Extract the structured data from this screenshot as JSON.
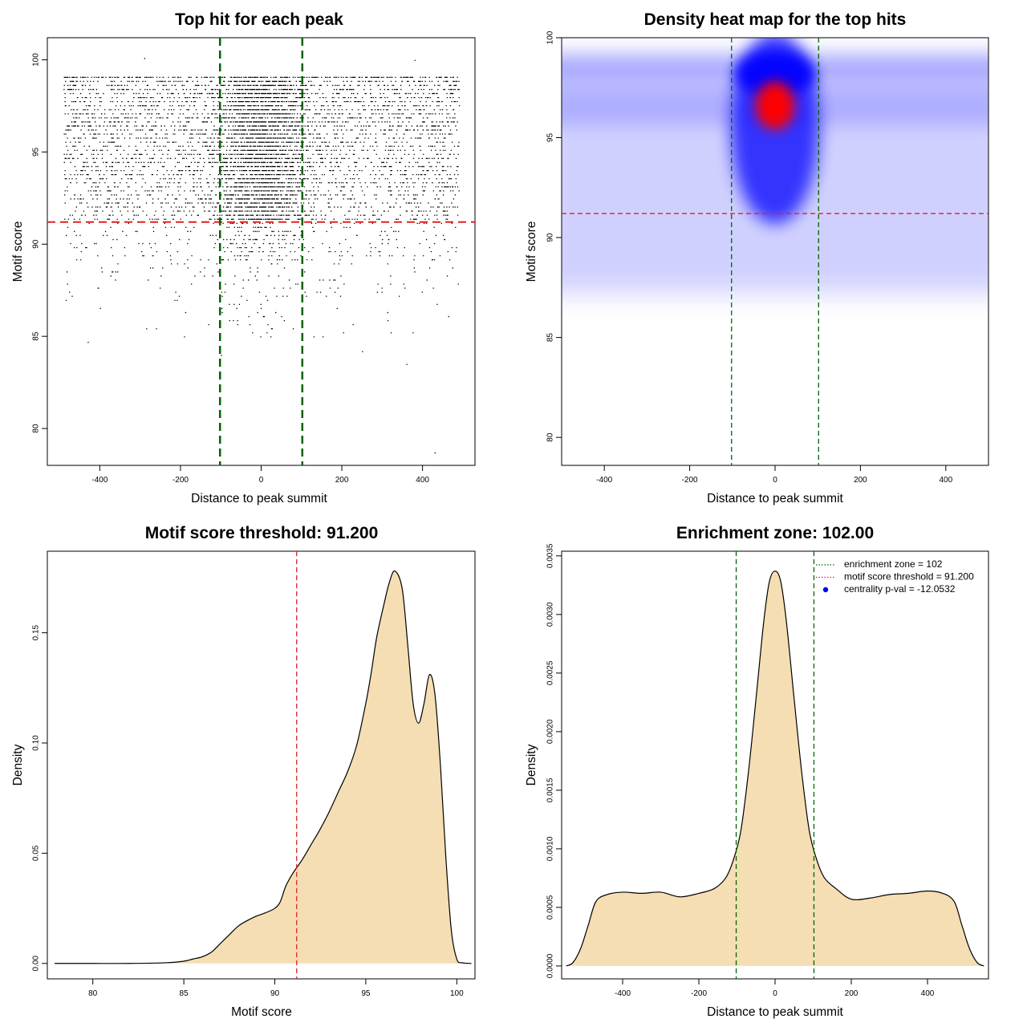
{
  "chart_data": [
    {
      "id": "scatter",
      "type": "scatter",
      "title": "Top hit for each peak",
      "xlabel": "Distance to peak summit",
      "ylabel": "Motif score",
      "xlim": [
        -530,
        530
      ],
      "ylim": [
        78,
        101.2
      ],
      "xticks": [
        -400,
        -200,
        0,
        200,
        400
      ],
      "xtick_labels": [
        "-400",
        "-200",
        "0",
        "200",
        "400"
      ],
      "yticks": [
        80,
        85,
        90,
        95,
        100
      ],
      "ytick_labels": [
        "80",
        "85",
        "90",
        "95",
        "100"
      ],
      "threshold_line": {
        "y": 91.2,
        "color": "#dd2222"
      },
      "zone_lines": {
        "x": [
          -102,
          102
        ],
        "color": "#006400"
      },
      "point_x_range": [
        -490,
        490
      ],
      "point_y_range": [
        78.6,
        100.1
      ],
      "point_color": "#000000"
    },
    {
      "id": "heatmap",
      "type": "heatmap",
      "title": "Density heat map for the top hits",
      "xlabel": "Distance to peak summit",
      "ylabel": "Motif score",
      "xlim": [
        -500,
        500
      ],
      "ylim": [
        78.6,
        100
      ],
      "xticks": [
        -400,
        -200,
        0,
        200,
        400
      ],
      "xtick_labels": [
        "-400",
        "-200",
        "0",
        "200",
        "400"
      ],
      "yticks": [
        80,
        85,
        90,
        95,
        100
      ],
      "ytick_labels": [
        "80",
        "85",
        "90",
        "95",
        "100"
      ],
      "threshold_line": {
        "y": 91.2,
        "color": "#dd2222"
      },
      "zone_lines": {
        "x": [
          -102,
          102
        ],
        "color": "#006400"
      },
      "hotspot": {
        "x": 0,
        "y": 96.6
      },
      "color_scale": [
        "#ffffff",
        "#0000ff",
        "#ff0000"
      ]
    },
    {
      "id": "score_density",
      "type": "area",
      "title": "Motif score threshold: 91.200",
      "xlabel": "Motif score",
      "ylabel": "Density",
      "xlim": [
        77.5,
        101
      ],
      "ylim": [
        -0.007,
        0.187
      ],
      "xticks": [
        80,
        85,
        90,
        95,
        100
      ],
      "xtick_labels": [
        "80",
        "85",
        "90",
        "95",
        "100"
      ],
      "yticks": [
        0.0,
        0.05,
        0.1,
        0.15
      ],
      "ytick_labels": [
        "0.00",
        "0.05",
        "0.10",
        "0.15"
      ],
      "threshold_line": {
        "x": 91.2,
        "color": "#dd2222"
      },
      "fill_color": "#f5deb3",
      "x": [
        77.9,
        80,
        82,
        84,
        85,
        85.5,
        86,
        86.5,
        87,
        87.5,
        88,
        88.5,
        89,
        89.5,
        90,
        90.3,
        90.6,
        91,
        91.5,
        92,
        92.5,
        93,
        93.5,
        94,
        94.5,
        95,
        95.3,
        95.6,
        96,
        96.3,
        96.6,
        97,
        97.3,
        97.6,
        97.9,
        98.2,
        98.5,
        98.8,
        99.1,
        99.4,
        99.7,
        100,
        100.3,
        100.8
      ],
      "y": [
        0,
        0,
        0,
        0.0003,
        0.001,
        0.002,
        0.003,
        0.005,
        0.009,
        0.013,
        0.017,
        0.0195,
        0.0215,
        0.023,
        0.025,
        0.028,
        0.035,
        0.041,
        0.047,
        0.054,
        0.061,
        0.069,
        0.078,
        0.087,
        0.099,
        0.118,
        0.132,
        0.148,
        0.163,
        0.173,
        0.178,
        0.17,
        0.145,
        0.118,
        0.109,
        0.118,
        0.131,
        0.122,
        0.09,
        0.048,
        0.015,
        0.002,
        0.0003,
        0
      ]
    },
    {
      "id": "distance_density",
      "type": "area",
      "title": "Enrichment zone: 102.00",
      "xlabel": "Distance to peak summit",
      "ylabel": "Density",
      "xlim": [
        -560,
        560
      ],
      "ylim": [
        -0.00011,
        0.00354
      ],
      "xticks": [
        -400,
        -200,
        0,
        200,
        400
      ],
      "xtick_labels": [
        "-400",
        "-200",
        "0",
        "200",
        "400"
      ],
      "yticks": [
        0.0,
        0.0005,
        0.001,
        0.0015,
        0.002,
        0.0025,
        0.003,
        0.0035
      ],
      "ytick_labels": [
        "0.0000",
        "0.0005",
        "0.0010",
        "0.0015",
        "0.0020",
        "0.0025",
        "0.0030",
        "0.0035"
      ],
      "zone_lines": {
        "x": [
          -102,
          102
        ],
        "color": "#006400"
      },
      "fill_color": "#f5deb3",
      "x": [
        -548,
        -530,
        -510,
        -490,
        -470,
        -440,
        -400,
        -350,
        -300,
        -250,
        -200,
        -160,
        -130,
        -110,
        -90,
        -70,
        -50,
        -30,
        -15,
        0,
        15,
        30,
        50,
        70,
        90,
        110,
        130,
        160,
        200,
        250,
        300,
        350,
        400,
        440,
        470,
        490,
        510,
        530,
        548
      ],
      "y": [
        0,
        3e-05,
        0.00015,
        0.00035,
        0.00055,
        0.00061,
        0.00063,
        0.00062,
        0.00063,
        0.00059,
        0.00062,
        0.00066,
        0.00075,
        0.0009,
        0.00115,
        0.00165,
        0.00228,
        0.00293,
        0.00328,
        0.00337,
        0.00328,
        0.00293,
        0.00228,
        0.00165,
        0.00115,
        0.0009,
        0.00075,
        0.00066,
        0.00057,
        0.00058,
        0.00061,
        0.00062,
        0.00064,
        0.00062,
        0.00055,
        0.00035,
        0.00015,
        3e-05,
        0
      ],
      "legend": {
        "position": "top-right",
        "entries": [
          {
            "label": "enrichment zone = 102",
            "color": "#006400",
            "style": "dotted-line"
          },
          {
            "label": "motif score threshold = 91.200",
            "color": "#dd2222",
            "style": "dotted-line"
          },
          {
            "label": "centrality p-val = -12.0532",
            "color": "#0000ff",
            "style": "point"
          }
        ]
      }
    }
  ]
}
